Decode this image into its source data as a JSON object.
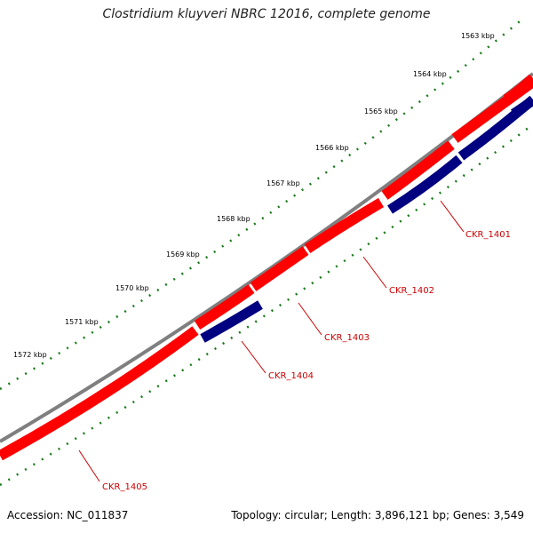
{
  "title": "Clostridium kluyveri NBRC 12016, complete genome",
  "accession": "Accession: NC_011837",
  "summary": "Topology: circular; Length: 3,896,121 bp; Genes: 3,549",
  "colors": {
    "backbone": "#7f7f7f",
    "forward_gene": "#ff0000",
    "reverse_gene": "#000080",
    "tick": "#1a7a1a",
    "label": "#cc0000"
  },
  "scale_ticks": [
    {
      "label": "1563 kbp"
    },
    {
      "label": "1564 kbp"
    },
    {
      "label": "1565 kbp"
    },
    {
      "label": "1566 kbp"
    },
    {
      "label": "1567 kbp"
    },
    {
      "label": "1568 kbp"
    },
    {
      "label": "1569 kbp"
    },
    {
      "label": "1570 kbp"
    },
    {
      "label": "1571 kbp"
    },
    {
      "label": "1572 kbp"
    }
  ],
  "genes": [
    {
      "label": "CKR_1401",
      "strand": "reverse"
    },
    {
      "label": "CKR_1402",
      "strand": "forward"
    },
    {
      "label": "CKR_1403",
      "strand": "forward"
    },
    {
      "label": "CKR_1404",
      "strand": "reverse"
    },
    {
      "label": "CKR_1405",
      "strand": "forward"
    }
  ]
}
